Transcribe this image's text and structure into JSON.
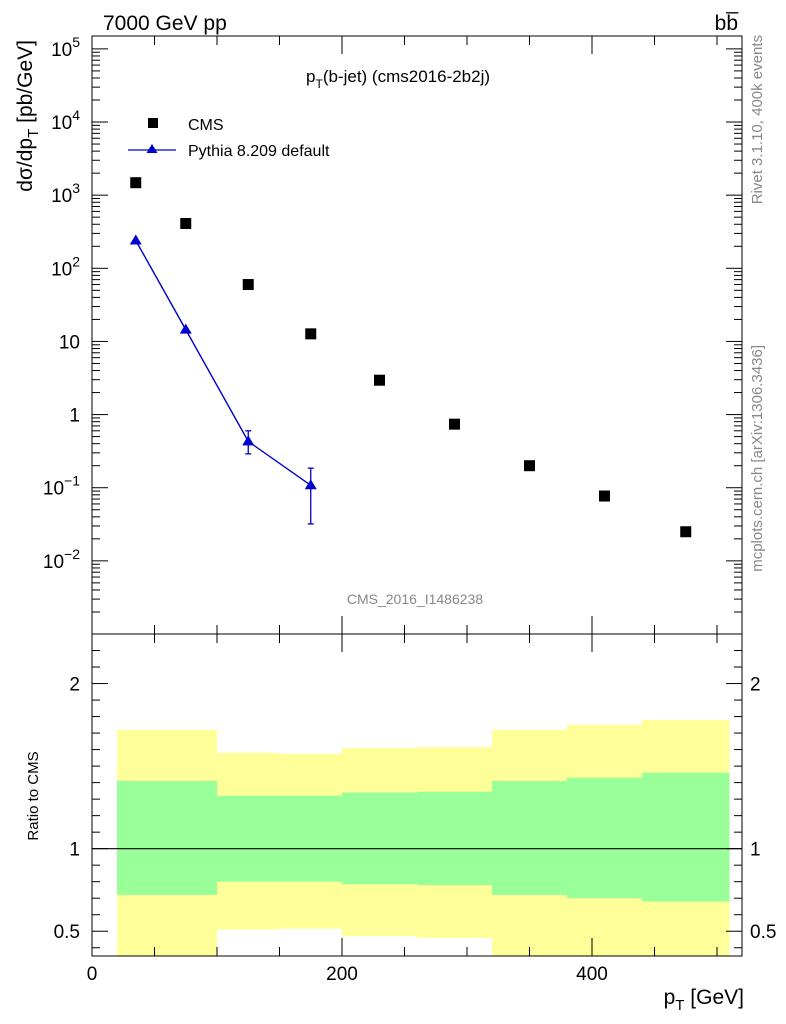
{
  "header": {
    "energy": "7000 GeV pp",
    "process": "bb̅"
  },
  "side_labels": {
    "rivet": "Rivet 3.1.10,  400k events",
    "mcplots": "mcplots.cern.ch [arXiv:1306.3436]"
  },
  "colors": {
    "cms": "#000000",
    "pythia": "#0000cc",
    "band_outer": "#ffff99",
    "band_inner": "#99ff99"
  },
  "chart_data": [
    {
      "type": "scatter",
      "title": "p_T(b-jet) (cms2016-2b2j)",
      "title_parts": {
        "main": "p",
        "sub": "T",
        "rest": "(b-jet) (cms2016-2b2j)"
      },
      "ylabel": "dσ/dp_T [pb/GeV]",
      "ylabel_parts": {
        "main": "dσ/dp",
        "sub": "T",
        "rest": " [pb/GeV]"
      },
      "watermark": "CMS_2016_I1486238",
      "yscale": "log",
      "ylim": [
        0.001,
        150000
      ],
      "xlim": [
        0,
        520
      ],
      "ytick_labels": [
        {
          "value": 100000,
          "base": "10",
          "exp": "5"
        },
        {
          "value": 10000,
          "base": "10",
          "exp": "4"
        },
        {
          "value": 1000,
          "base": "10",
          "exp": "3"
        },
        {
          "value": 100,
          "base": "10",
          "exp": "2"
        },
        {
          "value": 10,
          "base": "10",
          "exp": ""
        },
        {
          "value": 1,
          "base": "1",
          "exp": ""
        },
        {
          "value": 0.1,
          "base": "10",
          "exp": "−1"
        },
        {
          "value": 0.01,
          "base": "10",
          "exp": "−2"
        }
      ],
      "legend": {
        "position": "top-left"
      },
      "series": [
        {
          "name": "CMS",
          "marker": "square",
          "x": [
            35,
            75,
            125,
            175,
            230,
            290,
            350,
            410,
            475
          ],
          "y": [
            1480,
            410,
            60,
            12.7,
            2.95,
            0.74,
            0.2,
            0.077,
            0.025
          ]
        },
        {
          "name": "Pythia 8.209 default",
          "marker": "triangle",
          "line": true,
          "x": [
            35,
            75,
            125,
            175
          ],
          "y": [
            240,
            14.5,
            0.43,
            0.108
          ],
          "yerr_low": [
            0,
            0,
            0.29,
            0.032
          ],
          "yerr_high": [
            0,
            0,
            0.6,
            0.185
          ]
        }
      ]
    },
    {
      "type": "area",
      "ylabel": "Ratio to CMS",
      "xlabel": "p_T [GeV]",
      "xlabel_parts": {
        "main": "p",
        "sub": "T",
        "rest": " [GeV]"
      },
      "xlim": [
        0,
        520
      ],
      "ylim": [
        0.35,
        2.3
      ],
      "xticks": [
        0,
        200,
        400
      ],
      "xtick_labels": [
        "0",
        "200",
        "400"
      ],
      "yticks": [
        0.5,
        1,
        2
      ],
      "ytick_labels": [
        "0.5",
        "1",
        "2"
      ],
      "reference_line": 1,
      "bins": [
        {
          "xlow": 20,
          "xhigh": 100,
          "outer_low": 0.35,
          "outer_high": 1.72,
          "inner_low": 0.72,
          "inner_high": 1.41
        },
        {
          "xlow": 100,
          "xhigh": 150,
          "outer_low": 0.51,
          "outer_high": 1.58,
          "inner_low": 0.8,
          "inner_high": 1.32
        },
        {
          "xlow": 150,
          "xhigh": 200,
          "outer_low": 0.515,
          "outer_high": 1.575,
          "inner_low": 0.8,
          "inner_high": 1.32
        },
        {
          "xlow": 200,
          "xhigh": 260,
          "outer_low": 0.47,
          "outer_high": 1.61,
          "inner_low": 0.785,
          "inner_high": 1.34
        },
        {
          "xlow": 260,
          "xhigh": 320,
          "outer_low": 0.46,
          "outer_high": 1.615,
          "inner_low": 0.78,
          "inner_high": 1.345
        },
        {
          "xlow": 320,
          "xhigh": 380,
          "outer_low": 0.35,
          "outer_high": 1.72,
          "inner_low": 0.72,
          "inner_high": 1.41
        },
        {
          "xlow": 380,
          "xhigh": 440,
          "outer_low": 0.35,
          "outer_high": 1.75,
          "inner_low": 0.7,
          "inner_high": 1.43
        },
        {
          "xlow": 440,
          "xhigh": 510,
          "outer_low": 0.35,
          "outer_high": 1.78,
          "inner_low": 0.68,
          "inner_high": 1.46
        }
      ]
    }
  ]
}
